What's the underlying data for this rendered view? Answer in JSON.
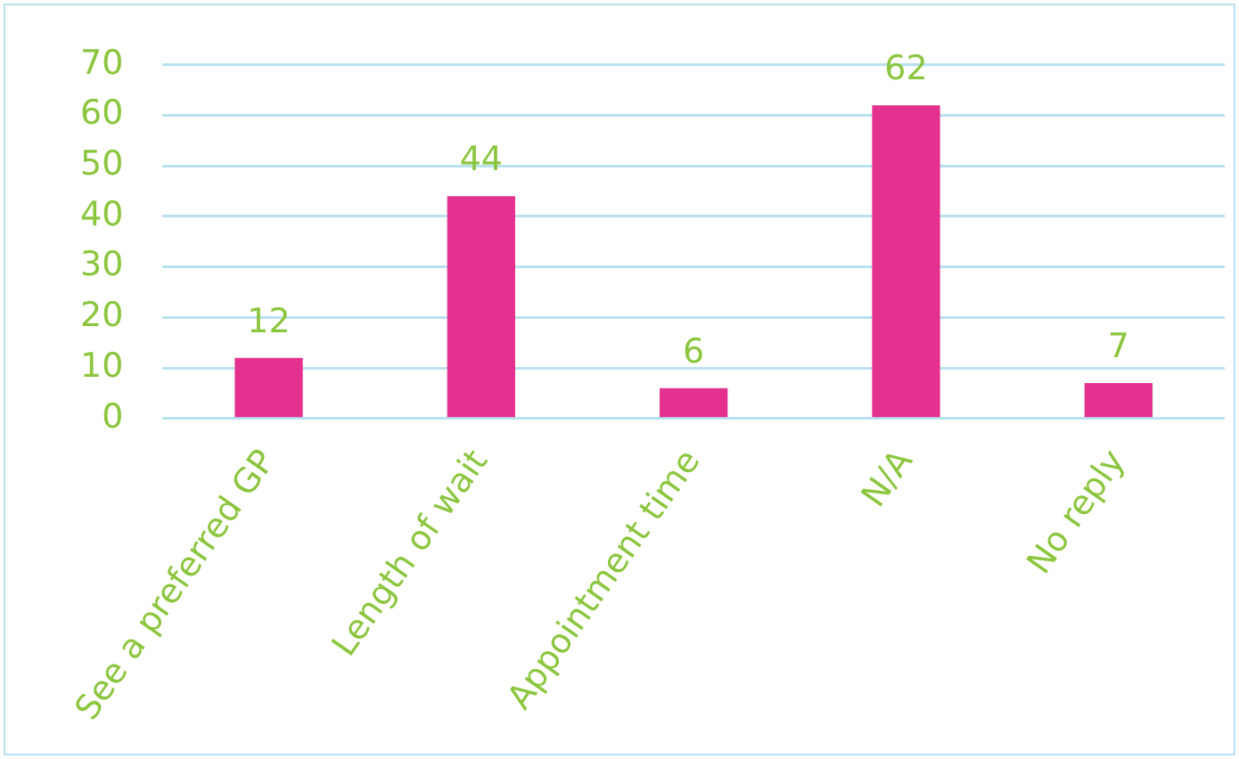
{
  "chart_data": {
    "type": "bar",
    "categories": [
      "See a preferred GP",
      "Length of wait",
      "Appointment time",
      "N/A",
      "No reply"
    ],
    "values": [
      12,
      44,
      6,
      62,
      7
    ],
    "color": "#e4308f",
    "ylim": [
      0,
      70
    ],
    "yticks": [
      0,
      10,
      20,
      30,
      40,
      50,
      60,
      70
    ],
    "grid": "y",
    "data_labels": true
  }
}
